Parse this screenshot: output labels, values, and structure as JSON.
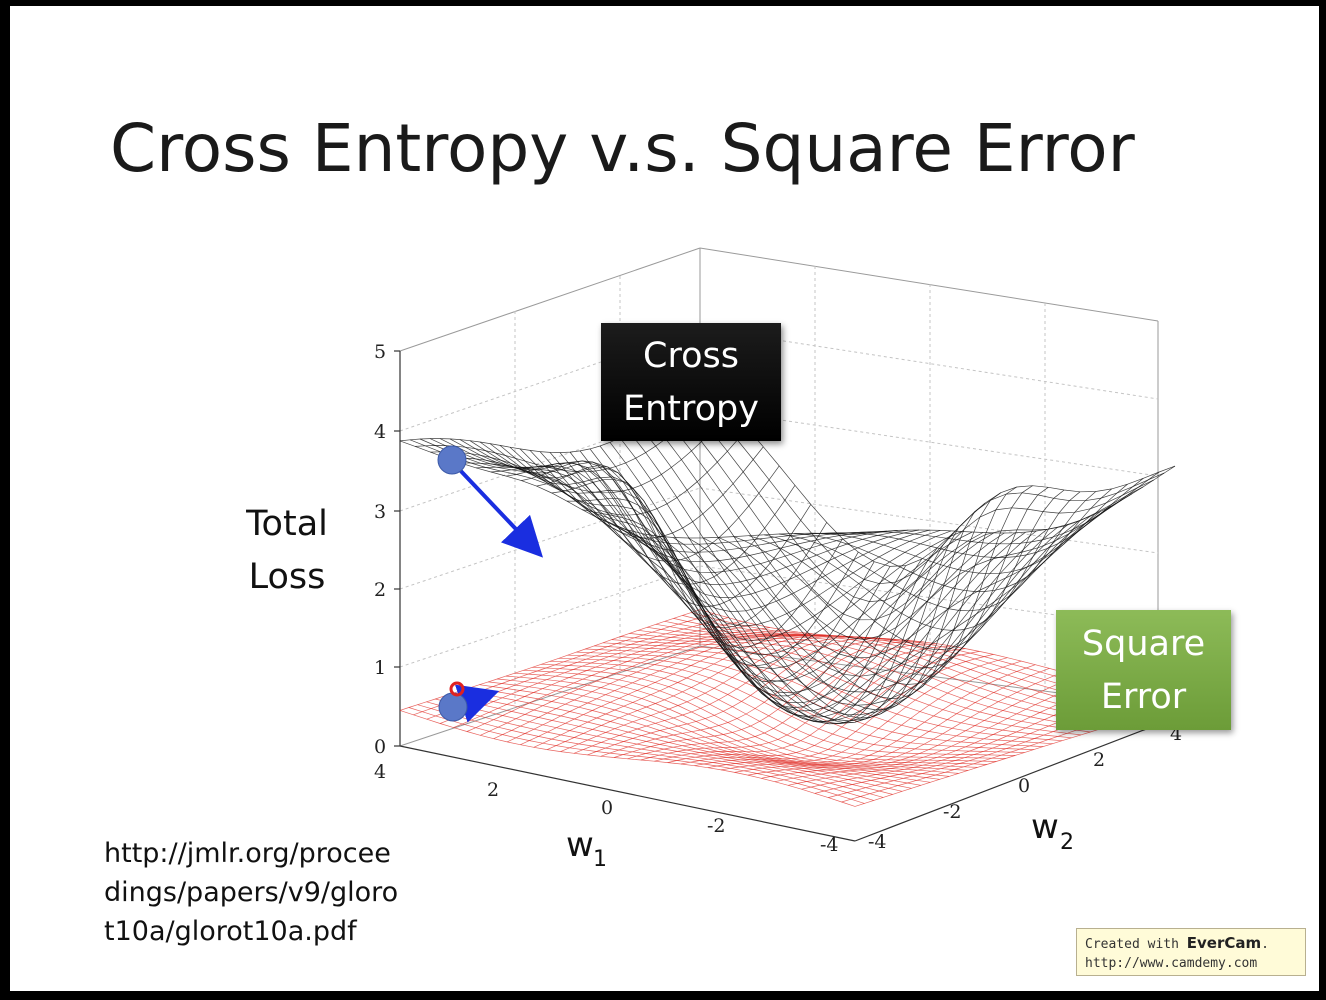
{
  "slide": {
    "title": "Cross Entropy v.s. Square Error",
    "url_lines": [
      "http://jmlr.org/procee",
      "dings/papers/v9/gloro",
      "t10a/glorot10a.pdf"
    ]
  },
  "chart": {
    "ylabel_line1": "Total",
    "ylabel_line2": "Loss",
    "x_axis_label": "w",
    "x_axis_sub": "1",
    "y_axis_label": "w",
    "y_axis_sub": "2",
    "z_ticks": [
      "0",
      "1",
      "2",
      "3",
      "4",
      "5"
    ],
    "w1_ticks": [
      "4",
      "2",
      "0",
      "-2",
      "-4"
    ],
    "w2_ticks": [
      "-4",
      "-2",
      "0",
      "2",
      "4"
    ],
    "callouts": {
      "cross_entropy_line1": "Cross",
      "cross_entropy_line2": "Entropy",
      "square_error_line1": "Square",
      "square_error_line2": "Error"
    },
    "colors": {
      "cross_entropy_mesh": "#111111",
      "square_error_mesh": "#e0302a",
      "gradient_arrow": "#1a2ee0",
      "ball": "#5a78c8"
    }
  },
  "watermark": {
    "prefix": "Created with ",
    "brand": "EverCam",
    "suffix": ".",
    "url": "http://www.camdemy.com"
  }
}
